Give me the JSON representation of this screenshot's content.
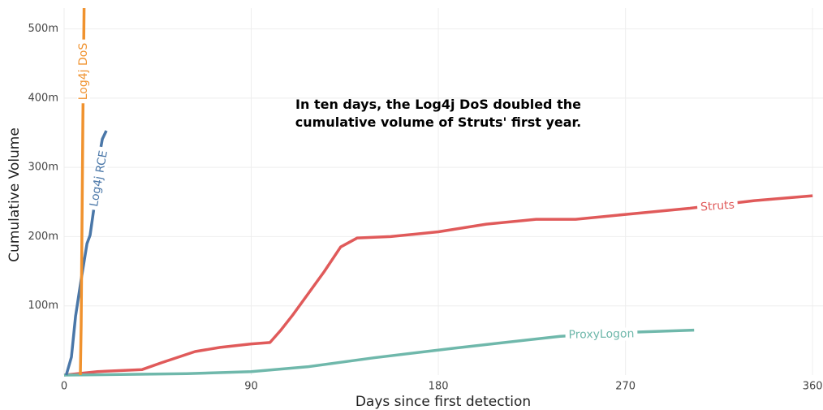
{
  "chart_data": {
    "type": "line",
    "annotation": "In ten days, the Log4j DoS doubled the cumulative volume of Struts' first year.",
    "x_label": "Days since first detection",
    "y_label": "Cumulative Volume",
    "xlim": [
      0,
      365
    ],
    "xticks": [
      0,
      90,
      180,
      270,
      360
    ],
    "ylim": [
      0,
      530000000
    ],
    "yticks": [
      {
        "value": 100000000,
        "label": "100m"
      },
      {
        "value": 200000000,
        "label": "200m"
      },
      {
        "value": 300000000,
        "label": "300m"
      },
      {
        "value": 400000000,
        "label": "400m"
      },
      {
        "value": 500000000,
        "label": "500m"
      }
    ],
    "grid": true,
    "series": [
      {
        "name": "Struts",
        "color": "#e05a5a",
        "x": [
          0,
          16,
          37.5,
          47,
          63,
          75,
          90,
          99,
          104,
          110,
          117.5,
          125,
          133,
          141,
          157,
          180,
          203,
          227,
          246,
          270,
          301,
          332,
          360
        ],
        "values": [
          0,
          5000000,
          8000000,
          18000000,
          34000000,
          40000000,
          45000000,
          47000000,
          64000000,
          87000000,
          118000000,
          149000000,
          185000000,
          198000000,
          200000000,
          207000000,
          218000000,
          225000000,
          225000000,
          232000000,
          241000000,
          252000000,
          259000000
        ]
      },
      {
        "name": "ProxyLogon",
        "color": "#6fb8ab",
        "x": [
          0,
          59,
          90,
          117,
          149,
          188,
          238.6,
          274,
          303
        ],
        "values": [
          0,
          2000000,
          5000000,
          12000000,
          25000000,
          39000000,
          56000000,
          62000000,
          65000000
        ]
      },
      {
        "name": "Log4j RCE",
        "color": "#4a77a8",
        "x": [
          1,
          3.5,
          5.5,
          8.2,
          11,
          12.5,
          15,
          16.8,
          18.4,
          20.3
        ],
        "values": [
          0,
          26000000,
          85000000,
          138000000,
          190000000,
          202000000,
          255000000,
          314000000,
          341000000,
          353000000
        ]
      },
      {
        "name": "Log4j DoS",
        "color": "#f0922e",
        "x": [
          7.8,
          8.2,
          9,
          10
        ],
        "values": [
          0,
          73000000,
          367000000,
          640000000
        ]
      }
    ]
  }
}
